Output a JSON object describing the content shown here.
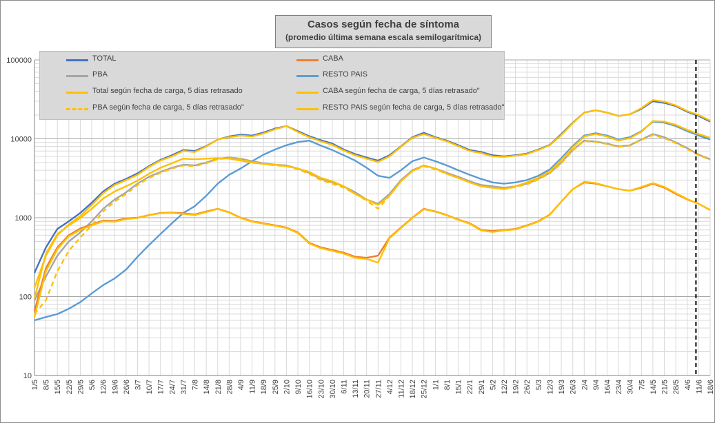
{
  "chart_data": {
    "type": "line",
    "title": "Casos según fecha de síntoma",
    "subtitle": "(promedio última semana escala semilogarítmica)",
    "y_scale": "log",
    "ylim": [
      10,
      100000
    ],
    "y_ticks": [
      "10",
      "100",
      "1000",
      "10000",
      "100000"
    ],
    "x_ticks": [
      "1/5",
      "8/5",
      "15/5",
      "22/5",
      "29/5",
      "5/6",
      "12/6",
      "19/6",
      "26/6",
      "3/7",
      "10/7",
      "17/7",
      "24/7",
      "31/7",
      "7/8",
      "14/8",
      "21/8",
      "28/8",
      "4/9",
      "11/9",
      "18/9",
      "25/9",
      "2/10",
      "9/10",
      "16/10",
      "23/10",
      "30/10",
      "6/11",
      "13/11",
      "20/11",
      "27/11",
      "4/12",
      "11/12",
      "18/12",
      "25/12",
      "1/1",
      "8/1",
      "15/1",
      "22/1",
      "29/1",
      "5/2",
      "12/2",
      "19/2",
      "26/2",
      "5/3",
      "12/3",
      "19/3",
      "26/3",
      "2/4",
      "9/4",
      "16/4",
      "23/4",
      "30/4",
      "7/5",
      "14/5",
      "21/5",
      "28/5",
      "4/6",
      "11/6",
      "18/6"
    ],
    "vertical_marker_x": "11/6",
    "grid": true,
    "legend": "top-left",
    "series": [
      {
        "name": "TOTAL",
        "color": "#4472c4",
        "dash": "solid",
        "values": [
          200,
          420,
          720,
          900,
          1150,
          1550,
          2150,
          2700,
          3100,
          3650,
          4500,
          5400,
          6200,
          7200,
          7000,
          8100,
          9800,
          10700,
          11300,
          11000,
          12000,
          13500,
          14500,
          12500,
          10800,
          9600,
          8700,
          7300,
          6400,
          5800,
          5300,
          6200,
          8000,
          10500,
          11900,
          10500,
          9500,
          8300,
          7200,
          6800,
          6200,
          6000,
          6200,
          6500,
          7300,
          8400,
          11500,
          16000,
          21500,
          23000,
          21500,
          19500,
          20500,
          24000,
          30000,
          28500,
          26000,
          22000,
          19500,
          16500
        ]
      },
      {
        "name": "CABA",
        "color": "#ed7d31",
        "dash": "solid",
        "values": [
          65,
          230,
          420,
          600,
          730,
          820,
          920,
          910,
          980,
          1000,
          1080,
          1150,
          1160,
          1140,
          1100,
          1200,
          1300,
          1170,
          1000,
          900,
          850,
          800,
          750,
          650,
          480,
          420,
          390,
          360,
          320,
          310,
          330,
          560,
          750,
          1000,
          1300,
          1200,
          1080,
          950,
          850,
          700,
          680,
          700,
          720,
          800,
          900,
          1100,
          1600,
          2300,
          2800,
          2700,
          2500,
          2300,
          2200,
          2400,
          2700,
          2400,
          2000,
          1700,
          1500,
          1250
        ]
      },
      {
        "name": "PBA",
        "color": "#a5a5a5",
        "dash": "solid",
        "values": [
          90,
          180,
          330,
          500,
          650,
          900,
          1300,
          1700,
          2100,
          2700,
          3300,
          3800,
          4300,
          4700,
          4600,
          5000,
          5600,
          5800,
          5600,
          5200,
          4900,
          4700,
          4600,
          4200,
          3700,
          3100,
          2800,
          2500,
          2100,
          1700,
          1500,
          2000,
          3000,
          4000,
          4600,
          4200,
          3700,
          3300,
          2900,
          2600,
          2500,
          2400,
          2500,
          2700,
          3100,
          3700,
          5000,
          7200,
          9500,
          9200,
          8700,
          8000,
          8300,
          9800,
          11500,
          10500,
          9000,
          7600,
          6300,
          5500
        ]
      },
      {
        "name": "RESTO PAIS",
        "color": "#5b9bd5",
        "dash": "solid",
        "values": [
          50,
          55,
          60,
          70,
          85,
          110,
          140,
          170,
          220,
          320,
          450,
          620,
          850,
          1150,
          1400,
          1900,
          2700,
          3500,
          4200,
          5200,
          6300,
          7300,
          8300,
          9100,
          9500,
          8200,
          7200,
          6200,
          5300,
          4300,
          3400,
          3200,
          4000,
          5200,
          5800,
          5200,
          4600,
          4000,
          3500,
          3100,
          2800,
          2700,
          2800,
          3000,
          3400,
          4100,
          5700,
          8100,
          11000,
          11800,
          11000,
          9800,
          10500,
          12500,
          16500,
          16000,
          14500,
          12500,
          11000,
          9800
        ]
      },
      {
        "name": "Total según fecha de carga, 5 días retrasado",
        "color": "#ffc000",
        "dash": "solid",
        "values": [
          130,
          330,
          600,
          820,
          1050,
          1450,
          2050,
          2600,
          3000,
          3500,
          4400,
          5300,
          6000,
          7000,
          6800,
          8000,
          9800,
          10500,
          11000,
          10700,
          11700,
          13200,
          14500,
          12200,
          10500,
          9300,
          8400,
          7100,
          6200,
          5600,
          5100,
          6000,
          7900,
          10300,
          11500,
          10300,
          9300,
          8100,
          7000,
          6600,
          6000,
          5900,
          6100,
          6400,
          7200,
          8300,
          11200,
          15800,
          21500,
          23000,
          21500,
          19500,
          20500,
          24500,
          31000,
          29500,
          26500,
          22500,
          20000,
          17000
        ]
      },
      {
        "name": "CABA según fecha de carga, 5 días retrasado\"",
        "color": "#ffc000",
        "dash": "solid",
        "values": [
          55,
          210,
          400,
          580,
          700,
          800,
          900,
          890,
          960,
          990,
          1070,
          1140,
          1150,
          1120,
          1080,
          1180,
          1290,
          1160,
          990,
          890,
          840,
          790,
          740,
          640,
          470,
          410,
          380,
          350,
          310,
          300,
          270,
          550,
          740,
          990,
          1280,
          1190,
          1070,
          940,
          840,
          690,
          660,
          690,
          710,
          790,
          890,
          1090,
          1600,
          2300,
          2850,
          2750,
          2500,
          2300,
          2200,
          2450,
          2750,
          2450,
          2050,
          1720,
          1500,
          1250
        ]
      },
      {
        "name": "PBA según fecha de carga, 5 días retrasado\"",
        "color": "#ffc000",
        "dash": "dashed",
        "values": [
          60,
          90,
          210,
          380,
          560,
          800,
          1200,
          1600,
          2000,
          2600,
          3200,
          3700,
          4200,
          4600,
          4500,
          4900,
          5500,
          5700,
          5500,
          5100,
          4800,
          4600,
          4500,
          4100,
          3600,
          3000,
          2700,
          2400,
          2000,
          1650,
          1300,
          1900,
          2900,
          3900,
          4500,
          4100,
          3600,
          3200,
          2800,
          2500,
          2400,
          2300,
          2450,
          2650,
          3050,
          3650,
          4900,
          7100,
          9400,
          9100,
          8600,
          7900,
          8200,
          9700,
          11200,
          10200,
          8800,
          7400,
          6200,
          5400
        ]
      },
      {
        "name": "RESTO PAIS según fecha de carga, 5 días retrasado\"",
        "color": "#ffc000",
        "dash": "solid",
        "values": [
          95,
          350,
          620,
          800,
          990,
          1300,
          1750,
          2150,
          2500,
          2950,
          3600,
          4300,
          4900,
          5600,
          5500,
          5600,
          5700,
          5600,
          5300,
          5000,
          4800,
          4700,
          4500,
          4200,
          3800,
          3200,
          2900,
          2500,
          2000,
          1700,
          1450,
          1900,
          2900,
          3900,
          4600,
          4200,
          3600,
          3200,
          2800,
          2500,
          2400,
          2300,
          2500,
          2800,
          3200,
          3900,
          5400,
          7800,
          10700,
          11500,
          10700,
          9500,
          10200,
          12300,
          16800,
          16500,
          15000,
          13000,
          11500,
          10300
        ]
      }
    ]
  }
}
